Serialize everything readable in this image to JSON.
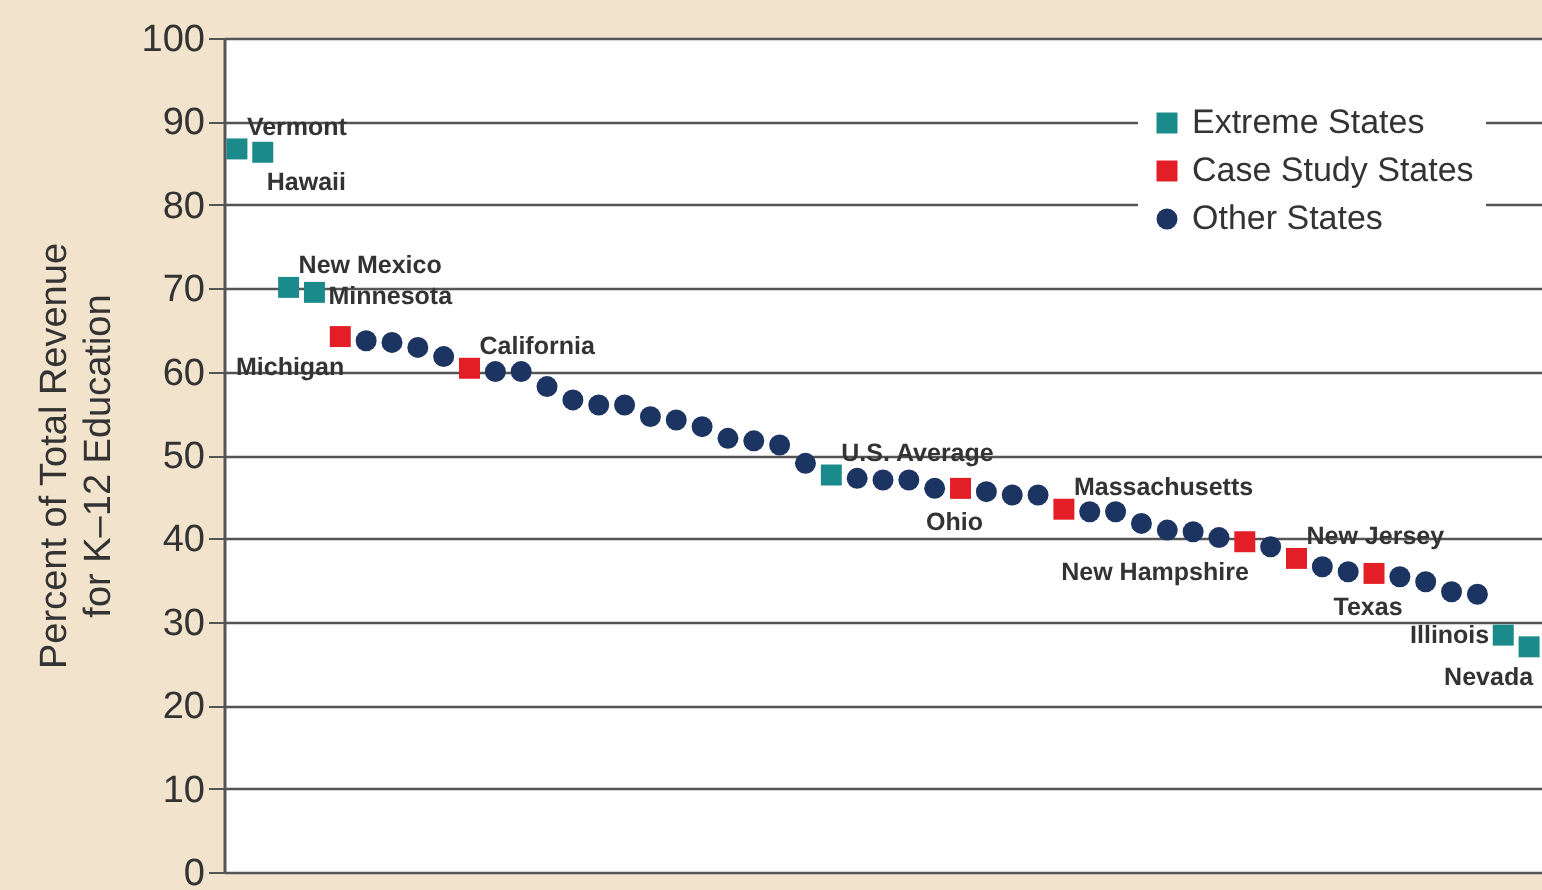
{
  "chart_data": {
    "type": "scatter",
    "ylabel": "Percent of Total Revenue\nfor K–12 Education",
    "categories": [
      null,
      null,
      null,
      null,
      null,
      null,
      null,
      null,
      null,
      null,
      null,
      null,
      null,
      null,
      null,
      null,
      null,
      null,
      null,
      null,
      null,
      null,
      null,
      null,
      null,
      null,
      null,
      null,
      null,
      null,
      null,
      null,
      null,
      null,
      null,
      null,
      null,
      null,
      null,
      null,
      null,
      null,
      null,
      null,
      null,
      null,
      null,
      null,
      null,
      null,
      null
    ],
    "ylim": [
      0,
      100
    ],
    "yticks": [
      0,
      10,
      20,
      30,
      40,
      50,
      60,
      70,
      80,
      90,
      100
    ],
    "grid": "y",
    "legend": "top right",
    "tick_labels": "y",
    "series": [
      {
        "name": "Extreme States",
        "color": "#1a8a8a",
        "marker": "square",
        "values": [
          86.7,
          86.3,
          70.1,
          69.5,
          null,
          null,
          null,
          null,
          null,
          null,
          null,
          null,
          null,
          null,
          null,
          null,
          null,
          null,
          null,
          null,
          null,
          null,
          null,
          47.6,
          null,
          null,
          null,
          null,
          null,
          null,
          null,
          null,
          null,
          null,
          null,
          null,
          null,
          null,
          null,
          null,
          null,
          null,
          null,
          null,
          null,
          null,
          null,
          null,
          null,
          28.4,
          27.0
        ],
        "value_labels": [
          "Vermont",
          "Hawaii",
          "New Mexico",
          "Minnesota",
          null,
          null,
          null,
          null,
          null,
          null,
          null,
          null,
          null,
          null,
          null,
          null,
          null,
          null,
          null,
          null,
          null,
          null,
          null,
          "U.S. Average",
          null,
          null,
          null,
          null,
          null,
          null,
          null,
          null,
          null,
          null,
          null,
          null,
          null,
          null,
          null,
          null,
          null,
          null,
          null,
          null,
          null,
          null,
          null,
          null,
          null,
          "Illinois",
          "Nevada"
        ]
      },
      {
        "name": "Case Study States",
        "color": "#e31e26",
        "marker": "square",
        "values": [
          null,
          null,
          null,
          null,
          64.2,
          null,
          null,
          null,
          null,
          60.4,
          null,
          null,
          null,
          null,
          null,
          null,
          null,
          null,
          null,
          null,
          null,
          null,
          null,
          null,
          null,
          null,
          null,
          null,
          46.0,
          null,
          null,
          null,
          43.5,
          null,
          null,
          null,
          null,
          null,
          null,
          39.6,
          null,
          37.6,
          null,
          null,
          35.8,
          null,
          null,
          null,
          null,
          null,
          null
        ],
        "value_labels": [
          null,
          null,
          null,
          null,
          "Michigan",
          null,
          null,
          null,
          null,
          "California",
          null,
          null,
          null,
          null,
          null,
          null,
          null,
          null,
          null,
          null,
          null,
          null,
          null,
          null,
          null,
          null,
          null,
          null,
          "Ohio",
          null,
          null,
          null,
          "Massachusetts",
          null,
          null,
          null,
          null,
          null,
          null,
          "New Hampshire",
          null,
          "New Jersey",
          null,
          null,
          "Texas",
          null,
          null,
          null,
          null,
          null,
          null
        ]
      },
      {
        "name": "Other States",
        "color": "#1c3461",
        "marker": "circle",
        "values": [
          null,
          null,
          null,
          null,
          null,
          63.7,
          63.5,
          62.9,
          61.8,
          null,
          60.0,
          60.0,
          58.2,
          56.6,
          56.0,
          56.0,
          54.6,
          54.2,
          53.4,
          52.0,
          51.7,
          51.2,
          49.0,
          null,
          47.2,
          47.0,
          47.0,
          46.0,
          null,
          45.6,
          45.2,
          45.2,
          null,
          43.2,
          43.2,
          41.8,
          41.0,
          40.8,
          40.1,
          null,
          39.0,
          null,
          36.6,
          36.0,
          null,
          35.4,
          34.8,
          33.6,
          33.3,
          null,
          null
        ]
      }
    ]
  }
}
